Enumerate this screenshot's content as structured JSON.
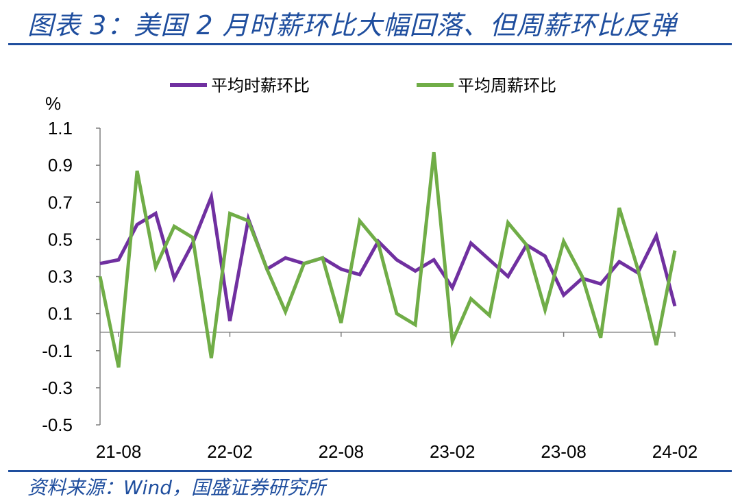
{
  "title": "图表 3：美国 2 月时薪环比大幅回落、但周薪环比反弹",
  "source": "资料来源：Wind，国盛证券研究所",
  "colors": {
    "hourly": "#7030a0",
    "weekly": "#70ad47",
    "accent": "#1f4e9e"
  },
  "chart_data": {
    "type": "line",
    "ylabel": "%",
    "ylim": [
      -0.5,
      1.1
    ],
    "yticks": [
      "1.1",
      "0.9",
      "0.7",
      "0.5",
      "0.3",
      "0.1",
      "-0.1",
      "-0.3",
      "-0.5"
    ],
    "xticks": [
      "21-08",
      "22-02",
      "22-08",
      "23-02",
      "23-08",
      "24-02"
    ],
    "x_start": "2021-07",
    "legend_position": "top",
    "x": [
      "2021-07",
      "2021-08",
      "2021-09",
      "2021-10",
      "2021-11",
      "2021-12",
      "2022-01",
      "2022-02",
      "2022-03",
      "2022-04",
      "2022-05",
      "2022-06",
      "2022-07",
      "2022-08",
      "2022-09",
      "2022-10",
      "2022-11",
      "2022-12",
      "2023-01",
      "2023-02",
      "2023-03",
      "2023-04",
      "2023-05",
      "2023-06",
      "2023-07",
      "2023-08",
      "2023-09",
      "2023-10",
      "2023-11",
      "2023-12",
      "2024-01",
      "2024-02"
    ],
    "series": [
      {
        "name": "平均时薪环比",
        "values": [
          0.37,
          0.39,
          0.58,
          0.64,
          0.29,
          0.48,
          0.73,
          0.06,
          0.61,
          0.34,
          0.4,
          0.37,
          0.4,
          0.34,
          0.31,
          0.49,
          0.39,
          0.33,
          0.39,
          0.24,
          0.48,
          0.39,
          0.3,
          0.47,
          0.41,
          0.2,
          0.29,
          0.26,
          0.38,
          0.32,
          0.52,
          0.14
        ]
      },
      {
        "name": "平均周薪环比",
        "values": [
          0.3,
          -0.19,
          0.87,
          0.35,
          0.57,
          0.51,
          -0.14,
          0.64,
          0.6,
          0.34,
          0.11,
          0.37,
          0.4,
          0.05,
          0.6,
          0.48,
          0.1,
          0.04,
          0.97,
          -0.05,
          0.18,
          0.09,
          0.59,
          0.47,
          0.12,
          0.49,
          0.3,
          -0.03,
          0.67,
          0.34,
          -0.07,
          0.44
        ]
      }
    ]
  }
}
